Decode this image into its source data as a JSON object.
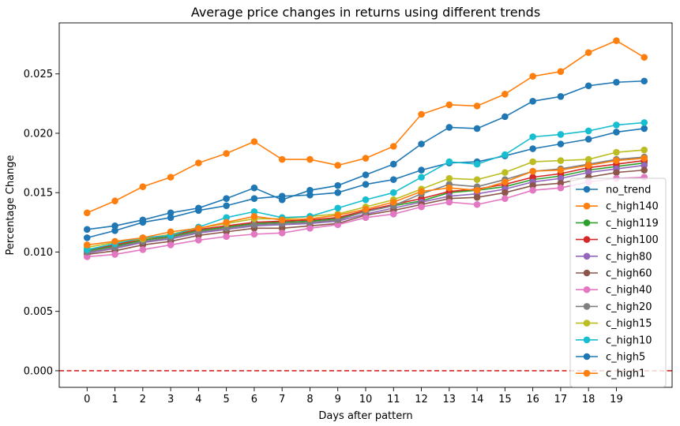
{
  "chart_data": {
    "type": "line",
    "title": "Average price changes in returns using different trends",
    "xlabel": "Days after pattern",
    "ylabel": "Percentage Change",
    "x": [
      0,
      1,
      2,
      3,
      4,
      5,
      6,
      7,
      8,
      9,
      10,
      11,
      12,
      13,
      14,
      15,
      16,
      17,
      18,
      19,
      20
    ],
    "x_tick_labels": [
      "0",
      "1",
      "2",
      "3",
      "4",
      "5",
      "6",
      "7",
      "8",
      "9",
      "10",
      "11",
      "12",
      "13",
      "14",
      "15",
      "16",
      "17",
      "18",
      "19"
    ],
    "xlim": [
      -1,
      21
    ],
    "ylim": [
      -0.0014,
      0.0293
    ],
    "y_ticks": [
      0.0,
      0.005,
      0.01,
      0.015,
      0.02,
      0.025
    ],
    "y_tick_labels": [
      "0.000",
      "0.005",
      "0.010",
      "0.015",
      "0.020",
      "0.025"
    ],
    "grid": false,
    "legend_position": "lower-right",
    "reference_line": {
      "y": 0,
      "color": "#d62728",
      "style": "dashed"
    },
    "series": [
      {
        "name": "no_trend",
        "color": "#1f77b4",
        "values": [
          0.0112,
          0.0118,
          0.0125,
          0.0129,
          0.0135,
          0.0139,
          0.0145,
          0.0147,
          0.0148,
          0.015,
          0.0157,
          0.0161,
          0.0169,
          0.0175,
          0.0176,
          0.0181,
          0.0187,
          0.0191,
          0.0195,
          0.0201,
          0.0204
        ]
      },
      {
        "name": "c_high140",
        "color": "#ff7f0e",
        "values": [
          0.0133,
          0.0143,
          0.0155,
          0.0163,
          0.0175,
          0.0183,
          0.0193,
          0.0178,
          0.0178,
          0.0173,
          0.0179,
          0.0189,
          0.0216,
          0.0224,
          0.0223,
          0.0233,
          0.0248,
          0.0252,
          0.0268,
          0.0278,
          0.0264
        ]
      },
      {
        "name": "c_high119",
        "color": "#2ca02c",
        "values": [
          0.0101,
          0.0105,
          0.011,
          0.0113,
          0.0118,
          0.0121,
          0.0124,
          0.0125,
          0.0126,
          0.0128,
          0.0134,
          0.0139,
          0.0143,
          0.015,
          0.0152,
          0.0155,
          0.0161,
          0.0164,
          0.0169,
          0.0172,
          0.0175
        ]
      },
      {
        "name": "c_high100",
        "color": "#d62728",
        "values": [
          0.0102,
          0.0106,
          0.0111,
          0.0114,
          0.0119,
          0.0122,
          0.0125,
          0.0126,
          0.0127,
          0.0129,
          0.0135,
          0.014,
          0.0145,
          0.0151,
          0.0153,
          0.0157,
          0.0163,
          0.0166,
          0.0171,
          0.0174,
          0.0177
        ]
      },
      {
        "name": "c_high80",
        "color": "#9467bd",
        "values": [
          0.0099,
          0.0103,
          0.0108,
          0.0111,
          0.0116,
          0.0119,
          0.0122,
          0.0123,
          0.0124,
          0.0126,
          0.0132,
          0.0137,
          0.0142,
          0.0147,
          0.0149,
          0.0153,
          0.0159,
          0.0162,
          0.0167,
          0.017,
          0.0173
        ]
      },
      {
        "name": "c_high60",
        "color": "#8c564b",
        "values": [
          0.0098,
          0.0101,
          0.0106,
          0.0109,
          0.0114,
          0.0117,
          0.012,
          0.012,
          0.0122,
          0.0124,
          0.0131,
          0.0135,
          0.014,
          0.0145,
          0.0146,
          0.015,
          0.0156,
          0.0158,
          0.0163,
          0.0167,
          0.0169
        ]
      },
      {
        "name": "c_high40",
        "color": "#e377c2",
        "values": [
          0.0096,
          0.0098,
          0.0102,
          0.0106,
          0.011,
          0.0113,
          0.0115,
          0.0116,
          0.012,
          0.0123,
          0.0129,
          0.0132,
          0.0138,
          0.0142,
          0.014,
          0.0145,
          0.0152,
          0.0154,
          0.0159,
          0.0162,
          0.0163
        ]
      },
      {
        "name": "c_high20",
        "color": "#7f7f7f",
        "values": [
          0.01,
          0.0104,
          0.0109,
          0.0112,
          0.0117,
          0.012,
          0.0123,
          0.0124,
          0.0125,
          0.0127,
          0.0134,
          0.0139,
          0.0149,
          0.0157,
          0.0155,
          0.0161,
          0.0168,
          0.017,
          0.0174,
          0.0178,
          0.018
        ]
      },
      {
        "name": "c_high15",
        "color": "#bcbd22",
        "values": [
          0.0104,
          0.0108,
          0.0111,
          0.0115,
          0.012,
          0.0124,
          0.0128,
          0.0128,
          0.013,
          0.0132,
          0.0138,
          0.0144,
          0.0153,
          0.0162,
          0.0161,
          0.0167,
          0.0176,
          0.0177,
          0.0178,
          0.0184,
          0.0186
        ]
      },
      {
        "name": "c_high10",
        "color": "#17becf",
        "values": [
          0.0102,
          0.0107,
          0.0112,
          0.0114,
          0.0121,
          0.0129,
          0.0134,
          0.0129,
          0.013,
          0.0137,
          0.0144,
          0.015,
          0.0163,
          0.0176,
          0.0174,
          0.0182,
          0.0197,
          0.0199,
          0.0202,
          0.0207,
          0.0209
        ]
      },
      {
        "name": "c_high5",
        "color": "#1f77b4",
        "values": [
          0.0119,
          0.0122,
          0.0127,
          0.0133,
          0.0137,
          0.0145,
          0.0154,
          0.0144,
          0.0152,
          0.0156,
          0.0165,
          0.0174,
          0.0191,
          0.0205,
          0.0204,
          0.0214,
          0.0227,
          0.0231,
          0.024,
          0.0243,
          0.0244
        ]
      },
      {
        "name": "c_high1",
        "color": "#ff7f0e",
        "values": [
          0.0106,
          0.0109,
          0.0112,
          0.0117,
          0.012,
          0.0125,
          0.013,
          0.0127,
          0.0128,
          0.0131,
          0.0136,
          0.0142,
          0.0151,
          0.0154,
          0.0152,
          0.0159,
          0.0168,
          0.0169,
          0.0173,
          0.0177,
          0.0179
        ]
      }
    ]
  }
}
